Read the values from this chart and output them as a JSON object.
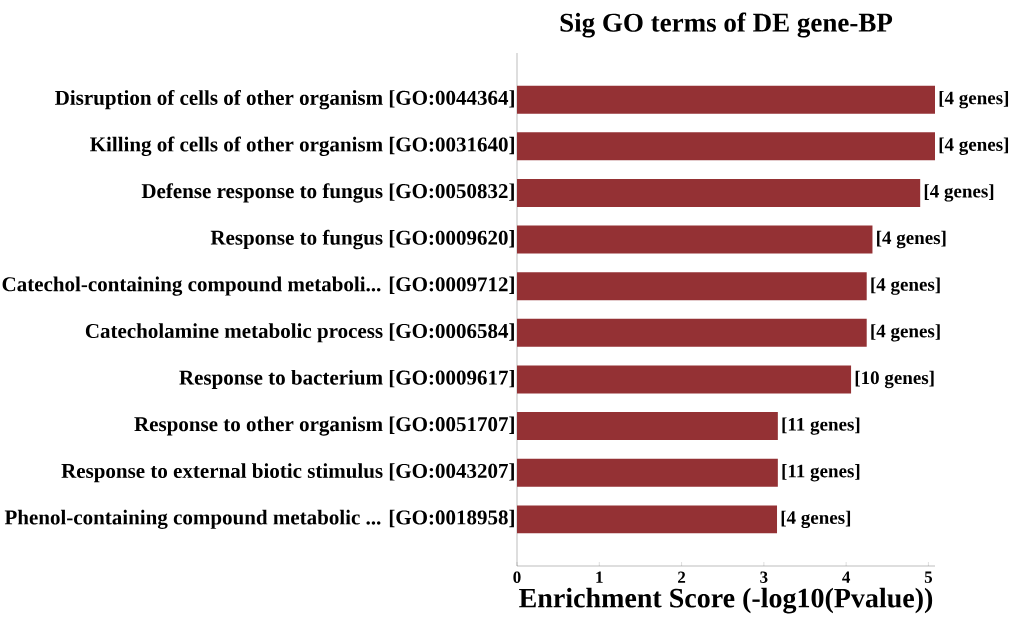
{
  "chart_data": {
    "type": "bar",
    "orientation": "horizontal",
    "title": "Sig GO terms of DE gene-BP",
    "xlabel": "Enrichment Score (-log10(Pvalue))",
    "categories": [
      "Disruption of cells of other organism [GO:0044364]",
      "Killing of cells of other organism [GO:0031640]",
      "Defense response to fungus [GO:0050832]",
      "Response to fungus [GO:0009620]",
      "Catechol-containing compound metaboli... [GO:0009712]",
      "Catecholamine metabolic process [GO:0006584]",
      "Response to bacterium [GO:0009617]",
      "Response to other organism [GO:0051707]",
      "Response to external biotic stimulus [GO:0043207]",
      "Phenol-containing compound metabolic ... [GO:0018958]"
    ],
    "values": [
      5.08,
      5.08,
      4.9,
      4.32,
      4.25,
      4.25,
      4.06,
      3.17,
      3.17,
      3.16
    ],
    "annotations": [
      {
        "text": "[4 genes]",
        "x": 5.08,
        "y": "Disruption of cells of other organism [GO:0044364]"
      },
      {
        "text": "[4 genes]",
        "x": 5.08,
        "y": "Killing of cells of other organism [GO:0031640]"
      },
      {
        "text": "[4 genes]",
        "x": 4.9,
        "y": "Defense response to fungus [GO:0050832]"
      },
      {
        "text": "[4 genes]",
        "x": 4.32,
        "y": "Response to fungus [GO:0009620]"
      },
      {
        "text": "[4 genes]",
        "x": 4.25,
        "y": "Catechol-containing compound metaboli... [GO:0009712]"
      },
      {
        "text": "[4 genes]",
        "x": 4.25,
        "y": "Catecholamine metabolic process [GO:0006584]"
      },
      {
        "text": "[10 genes]",
        "x": 4.06,
        "y": "Response to bacterium [GO:0009617]"
      },
      {
        "text": "[11 genes]",
        "x": 3.17,
        "y": "Response to other organism [GO:0051707]"
      },
      {
        "text": "[11 genes]",
        "x": 3.17,
        "y": "Response to external biotic stimulus [GO:0043207]"
      },
      {
        "text": "[4 genes]",
        "x": 3.16,
        "y": "Phenol-containing compound metabolic ... [GO:0018958]"
      }
    ],
    "color": "#943134",
    "xlim": [
      0,
      5.08
    ],
    "xticks": [
      0,
      1,
      2,
      3,
      4,
      5
    ],
    "grid": false
  }
}
